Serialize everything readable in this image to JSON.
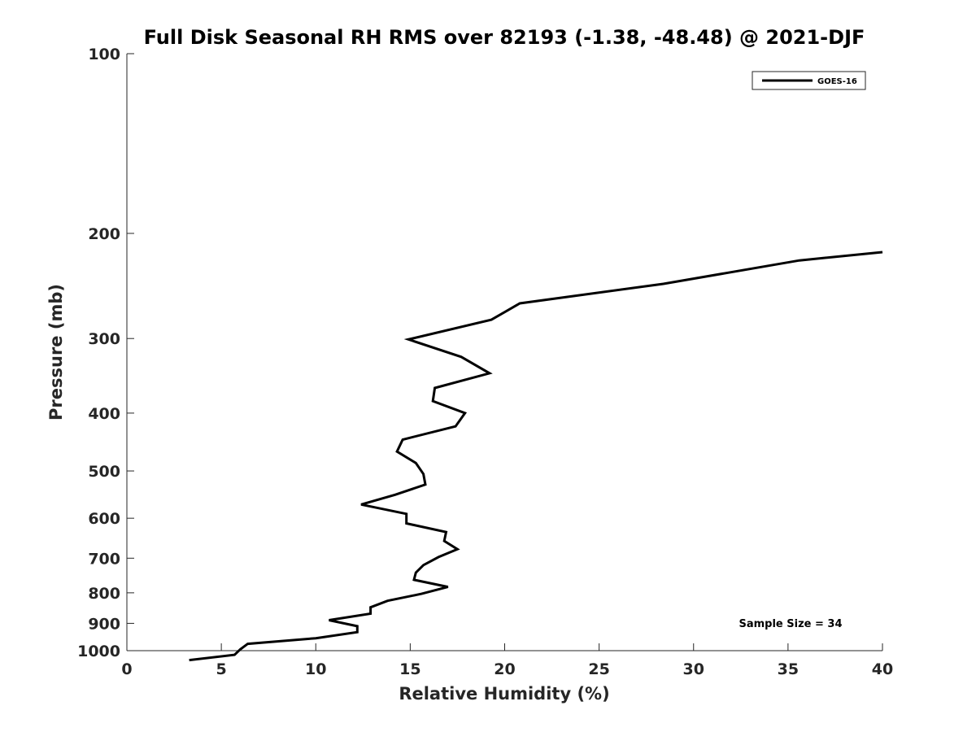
{
  "chart_data": {
    "type": "line",
    "title": "Full Disk Seasonal RH RMS over 82193 (-1.38, -48.48) @ 2021-DJF",
    "xlabel": "Relative Humidity (%)",
    "ylabel": "Pressure (mb)",
    "xlim": [
      0,
      40
    ],
    "ylim": [
      100,
      1000
    ],
    "y_scale": "log",
    "y_reversed": true,
    "x_ticks": [
      0,
      5,
      10,
      15,
      20,
      25,
      30,
      35,
      40
    ],
    "x_tick_labels": [
      "0",
      "5",
      "10",
      "15",
      "20",
      "25",
      "30",
      "35",
      "40"
    ],
    "y_ticks": [
      100,
      200,
      300,
      400,
      500,
      600,
      700,
      800,
      900,
      1000
    ],
    "y_tick_labels": [
      "100",
      "200",
      "300",
      "400",
      "500",
      "600",
      "700",
      "800",
      "900",
      "1000"
    ],
    "grid": false,
    "legend_position": "top-right",
    "color": "#000000",
    "series": [
      {
        "name": "GOES-16",
        "points": [
          [
            40.0,
            215
          ],
          [
            35.6,
            222
          ],
          [
            28.4,
            243
          ],
          [
            20.8,
            262
          ],
          [
            19.3,
            279
          ],
          [
            14.9,
            301
          ],
          [
            17.7,
            322
          ],
          [
            19.2,
            343
          ],
          [
            16.3,
            363
          ],
          [
            16.2,
            382
          ],
          [
            17.9,
            400
          ],
          [
            17.4,
            421
          ],
          [
            14.6,
            443
          ],
          [
            14.3,
            464
          ],
          [
            15.3,
            485
          ],
          [
            15.7,
            506
          ],
          [
            15.8,
            527
          ],
          [
            14.2,
            548
          ],
          [
            12.4,
            569
          ],
          [
            14.8,
            590
          ],
          [
            14.8,
            612
          ],
          [
            16.9,
            633
          ],
          [
            16.8,
            655
          ],
          [
            17.5,
            676
          ],
          [
            16.5,
            697
          ],
          [
            15.7,
            719
          ],
          [
            15.3,
            740
          ],
          [
            15.2,
            761
          ],
          [
            17.0,
            782
          ],
          [
            15.6,
            803
          ],
          [
            13.8,
            825
          ],
          [
            12.9,
            846
          ],
          [
            12.9,
            867
          ],
          [
            10.7,
            889
          ],
          [
            12.2,
            910
          ],
          [
            12.2,
            931
          ],
          [
            10.0,
            953
          ],
          [
            6.4,
            974
          ],
          [
            6.0,
            995
          ],
          [
            5.7,
            1016
          ],
          [
            3.3,
            1037
          ]
        ]
      }
    ],
    "annotation": "Sample Size = 34"
  }
}
